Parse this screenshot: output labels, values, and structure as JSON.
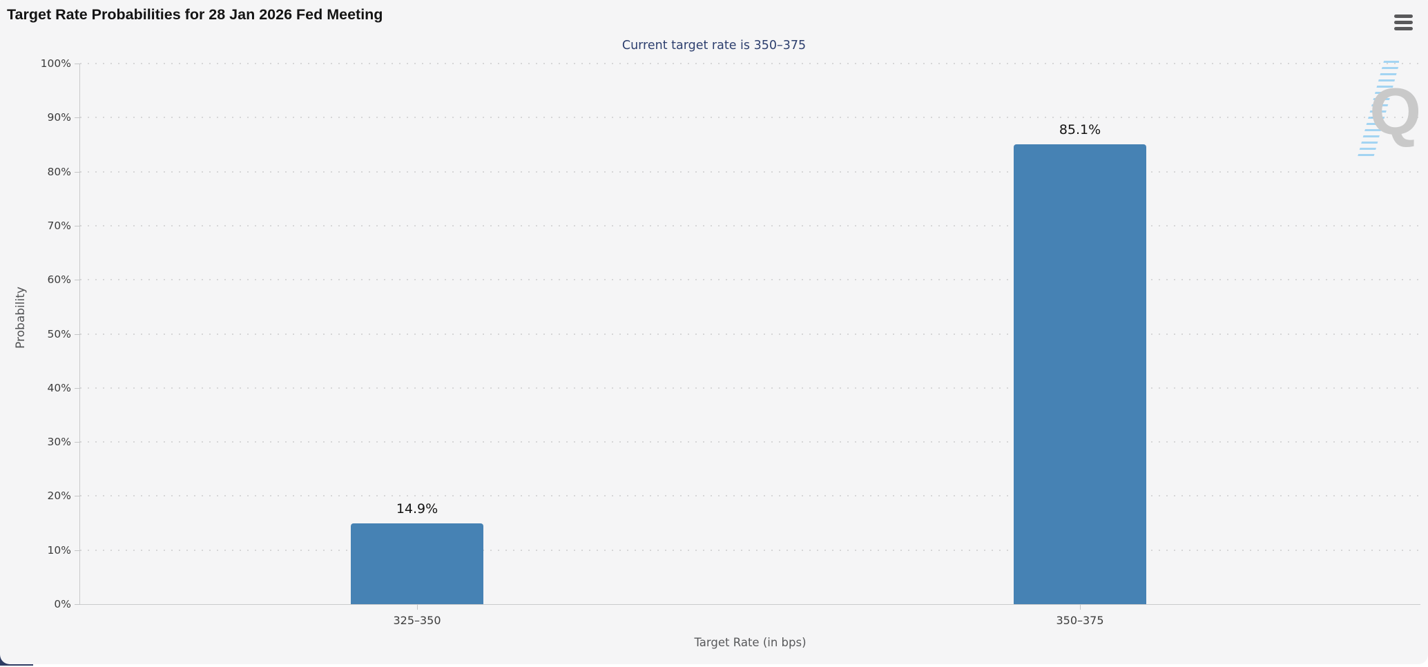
{
  "header": {
    "menu_icon": "hamburger-menu-icon"
  },
  "chart_data": {
    "type": "bar",
    "title": "Target Rate Probabilities for 28 Jan 2026 Fed Meeting",
    "subtitle": "Current target rate is 350–375",
    "categories": [
      "325–350",
      "350–375"
    ],
    "values": [
      14.9,
      85.1
    ],
    "value_labels": [
      "14.9%",
      "85.1%"
    ],
    "xlabel": "Target Rate (in bps)",
    "ylabel": "Probability",
    "ylim": [
      0,
      100
    ],
    "y_ticks": [
      "0%",
      "10%",
      "20%",
      "30%",
      "40%",
      "50%",
      "60%",
      "70%",
      "80%",
      "90%",
      "100%"
    ],
    "grid": "horizontal dotted",
    "legend": "none",
    "bar_color": "#4682b4",
    "subtitle_color": "#2d3f6e",
    "watermark_letter": "Q"
  }
}
